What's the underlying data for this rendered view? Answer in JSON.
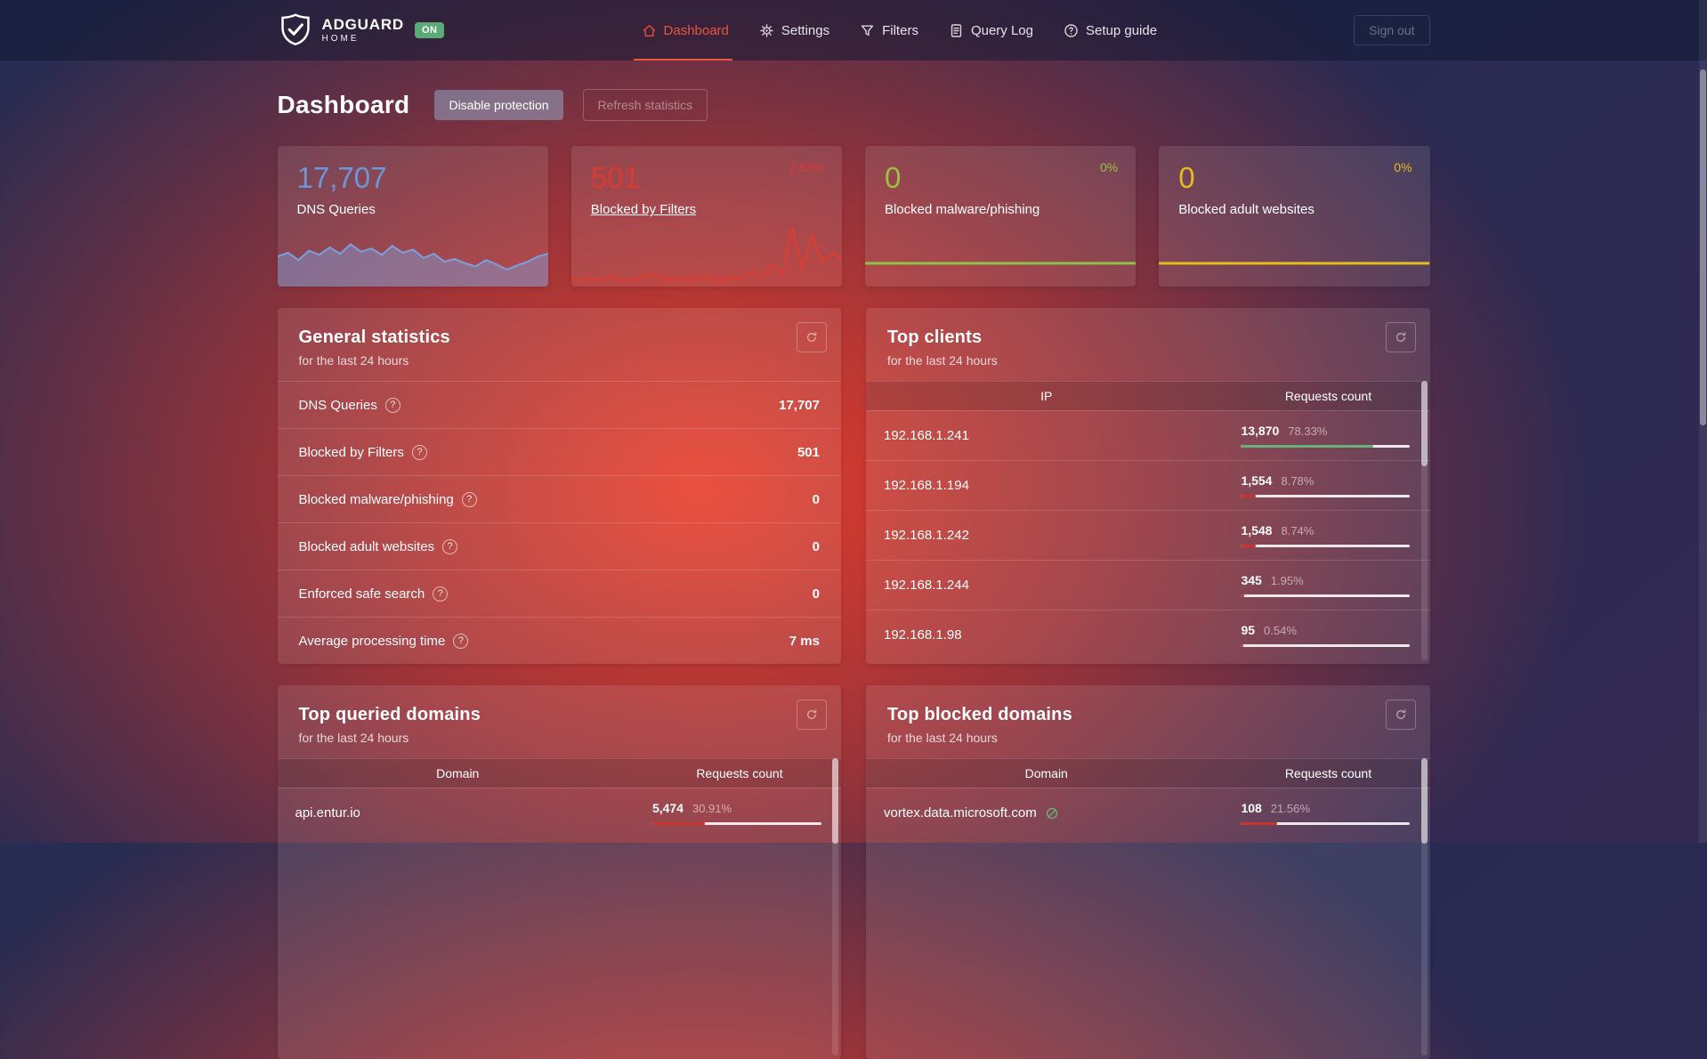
{
  "brand": {
    "name": "ADGUARD",
    "subname": "HOME",
    "status_badge": "ON"
  },
  "nav": {
    "items": [
      {
        "label": "Dashboard",
        "icon": "home-icon",
        "active": true
      },
      {
        "label": "Settings",
        "icon": "gear-icon",
        "active": false
      },
      {
        "label": "Filters",
        "icon": "funnel-icon",
        "active": false
      },
      {
        "label": "Query Log",
        "icon": "document-icon",
        "active": false
      },
      {
        "label": "Setup guide",
        "icon": "question-circle-icon",
        "active": false
      }
    ],
    "sign_out_label": "Sign out"
  },
  "page": {
    "title": "Dashboard",
    "disable_protection_label": "Disable protection",
    "refresh_statistics_label": "Refresh statistics"
  },
  "icons": {
    "help_glyph": "?"
  },
  "colors": {
    "nav_active_accent": "#e8573c",
    "dns_blue": "#6d96d8",
    "blocked_red": "#d93b31",
    "malware_green": "#9cc13c",
    "adult_yellow": "#e3bd1e",
    "bar_green": "#67b279",
    "bar_red": "#c6342c",
    "badge_green": "#5ba976"
  },
  "stat_cards": [
    {
      "value": "17,707",
      "label": "DNS Queries",
      "percent": ""
    },
    {
      "value": "501",
      "label": "Blocked by Filters",
      "percent": "2.83%"
    },
    {
      "value": "0",
      "label": "Blocked malware/phishing",
      "percent": "0%"
    },
    {
      "value": "0",
      "label": "Blocked adult websites",
      "percent": "0%"
    }
  ],
  "general_statistics": {
    "title": "General statistics",
    "subtitle": "for the last 24 hours",
    "rows": [
      {
        "label": "DNS Queries",
        "value": "17,707"
      },
      {
        "label": "Blocked by Filters",
        "value": "501"
      },
      {
        "label": "Blocked malware/phishing",
        "value": "0"
      },
      {
        "label": "Blocked adult websites",
        "value": "0"
      },
      {
        "label": "Enforced safe search",
        "value": "0"
      },
      {
        "label": "Average processing time",
        "value": "7 ms"
      }
    ]
  },
  "top_clients": {
    "title": "Top clients",
    "subtitle": "for the last 24 hours",
    "columns": [
      "IP",
      "Requests count"
    ],
    "rows": [
      {
        "ip": "192.168.1.241",
        "count": "13,870",
        "percent": "78.33%",
        "bar_percent": 78.33,
        "bar_color": "#67b279"
      },
      {
        "ip": "192.168.1.194",
        "count": "1,554",
        "percent": "8.78%",
        "bar_percent": 8.78,
        "bar_color": "#c6342c"
      },
      {
        "ip": "192.168.1.242",
        "count": "1,548",
        "percent": "8.74%",
        "bar_percent": 8.74,
        "bar_color": "#c6342c"
      },
      {
        "ip": "192.168.1.244",
        "count": "345",
        "percent": "1.95%",
        "bar_percent": 1.95,
        "bar_color": "#c6342c"
      },
      {
        "ip": "192.168.1.98",
        "count": "95",
        "percent": "0.54%",
        "bar_percent": 0.54,
        "bar_color": "#c6342c"
      }
    ]
  },
  "top_queried_domains": {
    "title": "Top queried domains",
    "subtitle": "for the last 24 hours",
    "columns": [
      "Domain",
      "Requests count"
    ],
    "rows": [
      {
        "domain": "api.entur.io",
        "count": "5,474",
        "percent": "30.91%",
        "bar_percent": 30.91,
        "bar_color": "#c6342c"
      }
    ]
  },
  "top_blocked_domains": {
    "title": "Top blocked domains",
    "subtitle": "for the last 24 hours",
    "columns": [
      "Domain",
      "Requests count"
    ],
    "rows": [
      {
        "domain": "vortex.data.microsoft.com",
        "count": "108",
        "percent": "21.56%",
        "bar_percent": 21.56,
        "bar_color": "#c6342c",
        "unblock_icon": true
      }
    ]
  },
  "chart_data": [
    {
      "type": "area",
      "name": "dns-queries-24h-sparkline",
      "color": "#7d9fe0",
      "fill_opacity": 0.45,
      "stroke_width": 2,
      "values": [
        55,
        62,
        48,
        66,
        58,
        72,
        60,
        78,
        64,
        70,
        58,
        75,
        62,
        68,
        52,
        60,
        45,
        50,
        42,
        36,
        48,
        40,
        30,
        38,
        45,
        55,
        60
      ]
    },
    {
      "type": "line",
      "name": "blocked-by-filters-24h-sparkline",
      "color": "#df3c32",
      "fill_opacity": 0.12,
      "stroke_width": 2,
      "values": [
        10,
        8,
        12,
        9,
        15,
        10,
        8,
        14,
        20,
        12,
        9,
        13,
        10,
        16,
        11,
        9,
        14,
        10,
        25,
        15,
        35,
        18,
        100,
        30,
        85,
        40,
        55,
        45
      ]
    },
    {
      "type": "line",
      "name": "blocked-malware-24h-sparkline",
      "color": "#8fc147",
      "fill_opacity": 0,
      "stroke_width": 3,
      "values": [
        0,
        0,
        0,
        0
      ]
    },
    {
      "type": "line",
      "name": "blocked-adult-24h-sparkline",
      "color": "#e3bd1e",
      "fill_opacity": 0,
      "stroke_width": 3,
      "values": [
        0,
        0,
        0,
        0
      ]
    }
  ]
}
